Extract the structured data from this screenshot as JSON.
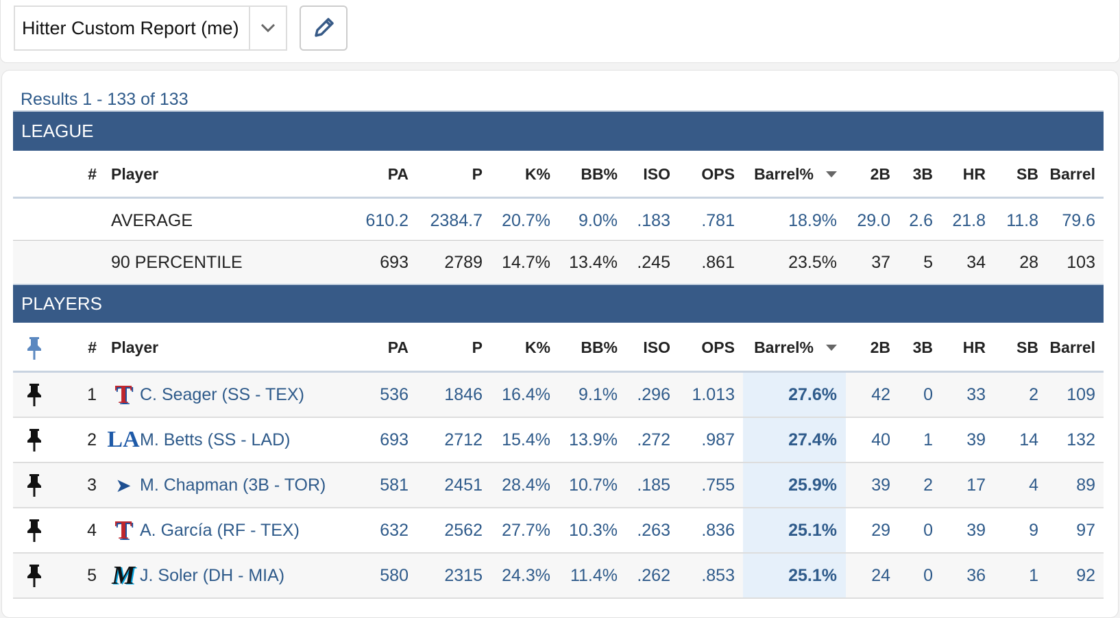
{
  "report_selector": {
    "value": "Hitter Custom Report (me)",
    "caret_icon": "chevron-down-icon"
  },
  "edit_button": {
    "icon": "pencil-icon"
  },
  "results_text": "Results 1 - 133 of 133",
  "colors": {
    "header_bg": "#375a87",
    "link": "#2e5a8a",
    "sorted_col_bg": "#e6f0fa"
  },
  "columns": [
    "#",
    "Player",
    "PA",
    "P",
    "K%",
    "BB%",
    "ISO",
    "OPS",
    "Barrel%",
    "2B",
    "3B",
    "HR",
    "SB",
    "Barrel"
  ],
  "sort": {
    "column": "Barrel%",
    "direction": "desc"
  },
  "league": {
    "title": "LEAGUE",
    "rows": [
      {
        "label": "AVERAGE",
        "values": [
          "610.2",
          "2384.7",
          "20.7%",
          "9.0%",
          ".183",
          ".781",
          "18.9%",
          "29.0",
          "2.6",
          "21.8",
          "11.8",
          "79.6"
        ]
      },
      {
        "label": "90 PERCENTILE",
        "values": [
          "693",
          "2789",
          "14.7%",
          "13.4%",
          ".245",
          ".861",
          "23.5%",
          "37",
          "5",
          "34",
          "28",
          "103"
        ]
      }
    ]
  },
  "players": {
    "title": "PLAYERS",
    "rows": [
      {
        "rank": "1",
        "team": "TEX",
        "name": "C. Seager (SS - TEX)",
        "values": [
          "536",
          "1846",
          "16.4%",
          "9.1%",
          ".296",
          "1.013",
          "27.6%",
          "42",
          "0",
          "33",
          "2",
          "109"
        ]
      },
      {
        "rank": "2",
        "team": "LAD",
        "name": "M. Betts (SS - LAD)",
        "values": [
          "693",
          "2712",
          "15.4%",
          "13.9%",
          ".272",
          ".987",
          "27.4%",
          "40",
          "1",
          "39",
          "14",
          "132"
        ]
      },
      {
        "rank": "3",
        "team": "TOR",
        "name": "M. Chapman (3B - TOR)",
        "values": [
          "581",
          "2451",
          "28.4%",
          "10.7%",
          ".185",
          ".755",
          "25.9%",
          "39",
          "2",
          "17",
          "4",
          "89"
        ]
      },
      {
        "rank": "4",
        "team": "TEX",
        "name": "A. García (RF - TEX)",
        "values": [
          "632",
          "2562",
          "27.7%",
          "10.3%",
          ".263",
          ".836",
          "25.1%",
          "29",
          "0",
          "39",
          "9",
          "97"
        ]
      },
      {
        "rank": "5",
        "team": "MIA",
        "name": "J. Soler (DH - MIA)",
        "values": [
          "580",
          "2315",
          "24.3%",
          "11.4%",
          ".262",
          ".853",
          "25.1%",
          "24",
          "0",
          "36",
          "1",
          "92"
        ]
      }
    ]
  }
}
